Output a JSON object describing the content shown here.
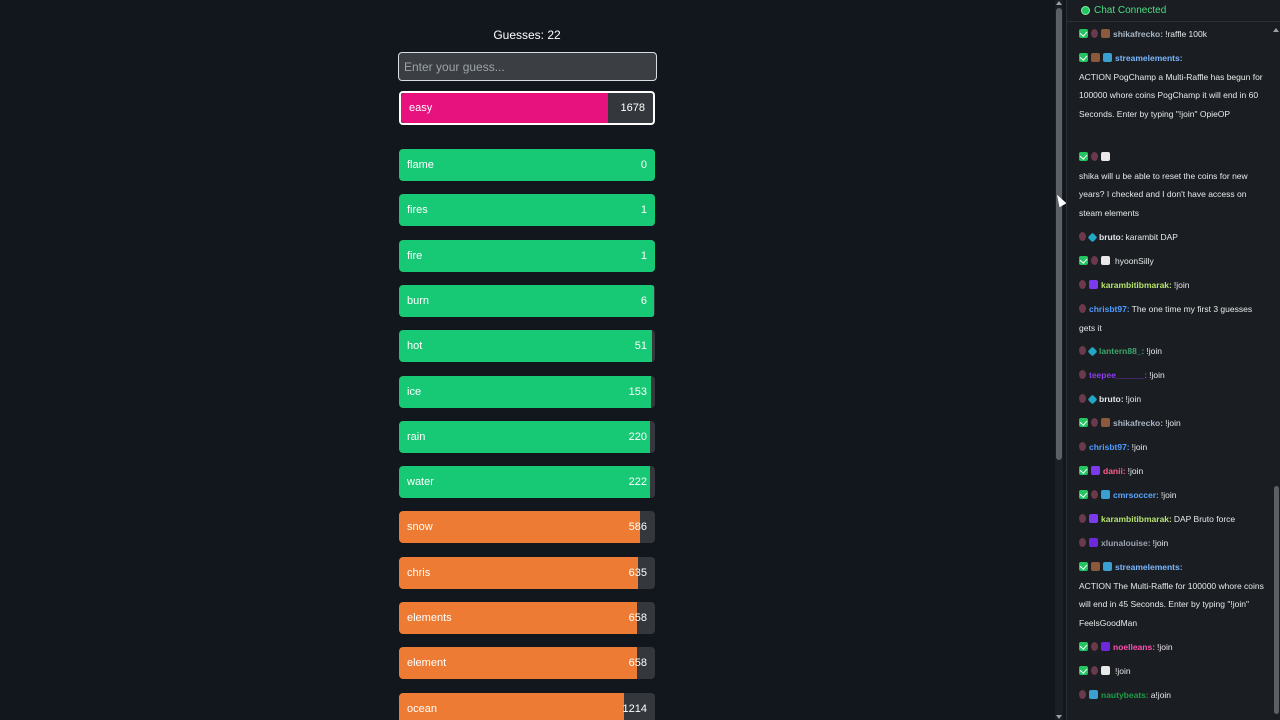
{
  "game": {
    "guess_count_text": "Guesses: 22",
    "input_placeholder": "Enter your guess...",
    "current_guess": {
      "word": "easy",
      "rank": "1678",
      "fill_fraction": 0.82,
      "color": "#e8127f"
    },
    "guesses": [
      {
        "word": "flame",
        "rank": "0",
        "fill_fraction": 1.0,
        "color": "#17c874"
      },
      {
        "word": "fires",
        "rank": "1",
        "fill_fraction": 1.0,
        "color": "#17c874"
      },
      {
        "word": "fire",
        "rank": "1",
        "fill_fraction": 1.0,
        "color": "#17c874"
      },
      {
        "word": "burn",
        "rank": "6",
        "fill_fraction": 0.995,
        "color": "#17c874"
      },
      {
        "word": "hot",
        "rank": "51",
        "fill_fraction": 0.99,
        "color": "#17c874"
      },
      {
        "word": "ice",
        "rank": "153",
        "fill_fraction": 0.985,
        "color": "#17c874"
      },
      {
        "word": "rain",
        "rank": "220",
        "fill_fraction": 0.98,
        "color": "#17c874"
      },
      {
        "word": "water",
        "rank": "222",
        "fill_fraction": 0.98,
        "color": "#17c874"
      },
      {
        "word": "snow",
        "rank": "586",
        "fill_fraction": 0.94,
        "color": "#ee7b33"
      },
      {
        "word": "chris",
        "rank": "635",
        "fill_fraction": 0.935,
        "color": "#ee7b33"
      },
      {
        "word": "elements",
        "rank": "658",
        "fill_fraction": 0.93,
        "color": "#ee7b33"
      },
      {
        "word": "element",
        "rank": "658",
        "fill_fraction": 0.93,
        "color": "#ee7b33"
      },
      {
        "word": "ocean",
        "rank": "1214",
        "fill_fraction": 0.88,
        "color": "#ee7b33"
      }
    ]
  },
  "chat": {
    "status": "Chat Connected",
    "messages": [
      {
        "badges": [
          "check",
          "drop",
          "sword"
        ],
        "user": "shikafrecko:",
        "color": "#a7b4c2",
        "text": "!raffle 100k"
      },
      {
        "badges": [
          "check",
          "sword",
          "box"
        ],
        "user": "streamelements:",
        "color": "#7bb7ff",
        "text": "ACTION PogChamp a Multi-Raffle has begun for 100000 whore coins PogChamp it will end in 60 Seconds. Enter by typing \"!join\" OpieOP"
      },
      {
        "badges": [
          "check",
          "drop",
          "tv"
        ],
        "user": "",
        "color": "#1f8f3f",
        "text": "shika will u be able to reset the coins for new years? I checked and I don't have access on steam elements"
      },
      {
        "badges": [
          "drop",
          "gem"
        ],
        "user": "bruto:",
        "color": "#e5e7eb",
        "text": "karambit DAP"
      },
      {
        "badges": [
          "check",
          "drop",
          "tv"
        ],
        "user": "",
        "color": "#1f8f3f",
        "text": "hyoonSilly"
      },
      {
        "badges": [
          "drop",
          "yt"
        ],
        "user": "karambitibmarak:",
        "color": "#b7e36b",
        "text": "!join"
      },
      {
        "badges": [
          "drop"
        ],
        "user": "chrisbt97:",
        "color": "#4f9cff",
        "text": "The one time my first 3 guesses gets it"
      },
      {
        "badges": [
          "drop",
          "gem"
        ],
        "user": "lantern88_:",
        "color": "#3aa66a",
        "text": "!join"
      },
      {
        "badges": [
          "drop"
        ],
        "user": "teepee______:",
        "color": "#8b3df0",
        "text": "!join"
      },
      {
        "badges": [
          "drop",
          "gem"
        ],
        "user": "bruto:",
        "color": "#e5e7eb",
        "text": "!join"
      },
      {
        "badges": [
          "check",
          "drop",
          "sword"
        ],
        "user": "shikafrecko:",
        "color": "#a7b4c2",
        "text": "!join"
      },
      {
        "badges": [
          "drop"
        ],
        "user": "chrisbt97:",
        "color": "#4f9cff",
        "text": "!join"
      },
      {
        "badges": [
          "check",
          "yt"
        ],
        "user": "danii:",
        "color": "#ff5c8a",
        "text": "!join"
      },
      {
        "badges": [
          "check",
          "drop",
          "box"
        ],
        "user": "cmrsoccer:",
        "color": "#5aa7ff",
        "text": "!join"
      },
      {
        "badges": [
          "drop",
          "yt"
        ],
        "user": "karambitibmarak:",
        "color": "#b7e36b",
        "text": "DAP Bruto force"
      },
      {
        "badges": [
          "drop",
          "dice"
        ],
        "user": "xlunalouise:",
        "color": "#9ca3af",
        "text": "!join"
      },
      {
        "badges": [
          "check",
          "sword",
          "box"
        ],
        "user": "streamelements:",
        "color": "#7bb7ff",
        "text": "ACTION The Multi-Raffle for 100000 whore coins will end in 45 Seconds. Enter by typing \"!join\" FeelsGoodMan"
      },
      {
        "badges": [
          "check",
          "drop",
          "dice"
        ],
        "user": "noelleans:",
        "color": "#ff4fb0",
        "text": "!join"
      },
      {
        "badges": [
          "check",
          "drop",
          "tv"
        ],
        "user": "",
        "color": "#1f8f3f",
        "text": "!join"
      },
      {
        "badges": [
          "drop",
          "box"
        ],
        "user": "nautybeats:",
        "color": "#1f9c46",
        "text": "a!join"
      }
    ]
  }
}
